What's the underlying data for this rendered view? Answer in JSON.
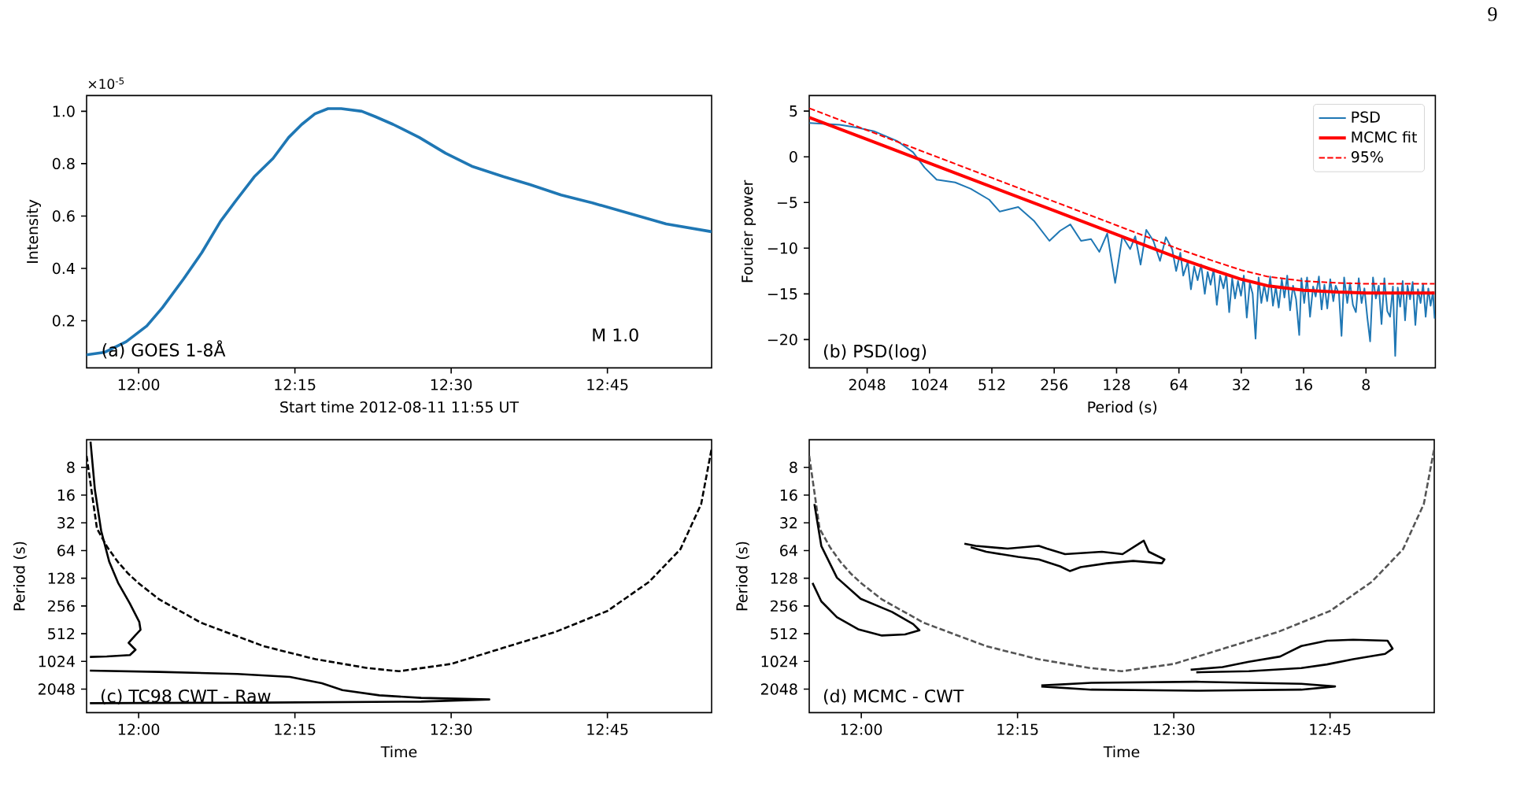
{
  "chart_data": [
    {
      "type": "line",
      "xlabel": "Start time 2012-08-11 11:55 UT",
      "ylabel": "Intensity",
      "annotations": [
        "(a) GOES 1-8Å",
        "M 1.0",
        "×10$^{-5}$"
      ],
      "x": [
        11.9167,
        11.946,
        11.98,
        12.013,
        12.038,
        12.072,
        12.101,
        12.131,
        12.156,
        12.185,
        12.215,
        12.24,
        12.261,
        12.282,
        12.303,
        12.324,
        12.357,
        12.378,
        12.407,
        12.449,
        12.491,
        12.533,
        12.584,
        12.626,
        12.676,
        12.726,
        12.785,
        12.844,
        12.9167
      ],
      "series": [
        {
          "color": "#1f77b4",
          "values": [
            0.07,
            0.08,
            0.12,
            0.18,
            0.25,
            0.36,
            0.46,
            0.58,
            0.66,
            0.75,
            0.82,
            0.9,
            0.95,
            0.99,
            1.01,
            1.01,
            1.0,
            0.98,
            0.95,
            0.9,
            0.84,
            0.79,
            0.75,
            0.72,
            0.68,
            0.65,
            0.61,
            0.57,
            0.54
          ]
        }
      ],
      "xlim": [
        11.9167,
        12.9167
      ],
      "ylim": [
        0.02,
        1.06
      ],
      "xticks": [
        {
          "value": 12,
          "label": "12:00"
        },
        {
          "value": 12.25,
          "label": "12:15"
        },
        {
          "value": 12.5,
          "label": "12:30"
        },
        {
          "value": 12.75,
          "label": "12:45"
        }
      ],
      "yticks": [
        0.2,
        0.4,
        0.6,
        0.8,
        {
          "value": 1,
          "label": "1.0"
        }
      ]
    },
    {
      "type": "line",
      "xlabel": "Period (s)",
      "ylabel": "Fourier power",
      "annotations": [
        "(b) PSD(log)"
      ],
      "log": "x",
      "legend": "top right",
      "xlim": [
        3900,
        3.7
      ],
      "ylim": [
        -23.1,
        6.7
      ],
      "xticks": [
        2048,
        1024,
        512,
        256,
        128,
        64,
        32,
        16,
        8
      ],
      "yticks": [
        {
          "value": -20,
          "label": "−20"
        },
        {
          "value": -15,
          "label": "−15"
        },
        {
          "value": -10,
          "label": "−10"
        },
        {
          "value": -5,
          "label": "−5"
        },
        0,
        5
      ],
      "series": [
        {
          "name": "PSD",
          "color": "#1f77b4",
          "x": [
            3890,
            2780,
            2300,
            1900,
            1460,
            1230,
            1080,
            946,
            770,
            647,
            527,
            469,
            382,
            321,
            270,
            240,
            214,
            190,
            170,
            155,
            142,
            130,
            120,
            110,
            104,
            98,
            92,
            85,
            79,
            74,
            69,
            66,
            63,
            61,
            58,
            56,
            54,
            52,
            50,
            48,
            46.5,
            45,
            43.5,
            42,
            40.5,
            39,
            37.8,
            36.6,
            35.4,
            34.3,
            33.2,
            32.1,
            31.1,
            30.1,
            29.1,
            28.2,
            27.3,
            26.4,
            25.6,
            24.8,
            24.0,
            23.2,
            22.5,
            21.8,
            21.1,
            20.4,
            19.8,
            19.2,
            18.6,
            18.0,
            17.4,
            16.8,
            16.4,
            15.9,
            15.4,
            14.9,
            14.4,
            14.0,
            13.5,
            13.1,
            12.7,
            12.3,
            11.9,
            11.5,
            11.2,
            10.8,
            10.5,
            10.2,
            9.85,
            9.55,
            9.25,
            8.95,
            8.67,
            8.4,
            8.14,
            7.88,
            7.64,
            7.4,
            7.17,
            6.94,
            6.73,
            6.52,
            6.31,
            6.12,
            5.93,
            5.78,
            5.62,
            5.47,
            5.32,
            5.18,
            5.04,
            4.9,
            4.76,
            4.62,
            4.49,
            4.36,
            4.24,
            4.12,
            4.0,
            3.9,
            3.8,
            3.73
          ],
          "values": [
            3.7,
            3.5,
            3.2,
            2.8,
            1.7,
            0.5,
            -1.2,
            -2.5,
            -2.8,
            -3.5,
            -4.7,
            -6.0,
            -5.5,
            -7.0,
            -9.2,
            -8.1,
            -7.4,
            -9.2,
            -9.0,
            -10.4,
            -8.4,
            -13.8,
            -8.7,
            -10.1,
            -8.7,
            -11.8,
            -8.0,
            -9.2,
            -11.4,
            -8.8,
            -10.1,
            -12.5,
            -10.5,
            -13.0,
            -11.5,
            -14.5,
            -12.0,
            -13.5,
            -11.8,
            -15.0,
            -12.6,
            -14.0,
            -12.3,
            -16.2,
            -13.0,
            -14.4,
            -12.8,
            -17.0,
            -13.3,
            -15.5,
            -13.6,
            -15.2,
            -13.0,
            -17.6,
            -13.8,
            -15.0,
            -19.9,
            -13.2,
            -16.0,
            -14.0,
            -15.8,
            -13.1,
            -16.3,
            -14.2,
            -16.5,
            -13.4,
            -15.4,
            -13.0,
            -16.8,
            -14.1,
            -15.6,
            -19.5,
            -13.3,
            -16.0,
            -13.2,
            -17.5,
            -14.2,
            -15.3,
            -13.1,
            -16.7,
            -14.0,
            -16.6,
            -13.4,
            -15.8,
            -14.1,
            -15.0,
            -19.6,
            -13.2,
            -16.0,
            -13.8,
            -16.2,
            -17.0,
            -13.3,
            -16.0,
            -14.4,
            -17.6,
            -20.2,
            -13.2,
            -15.5,
            -14.1,
            -18.3,
            -13.3,
            -16.9,
            -17.5,
            -14.2,
            -21.8,
            -14.3,
            -16.4,
            -13.6,
            -17.9,
            -14.1,
            -15.6,
            -13.7,
            -18.4,
            -14.5,
            -16.0,
            -13.9,
            -17.5,
            -14.4,
            -16.3,
            -14.8,
            -17.7
          ]
        },
        {
          "name": "MCMC fit",
          "color": "#ff0000",
          "x": [
            3890,
            2048,
            1024,
            512,
            256,
            128,
            64,
            45,
            32,
            24,
            16,
            11,
            8,
            3.73
          ],
          "values": [
            4.3,
            1.9,
            -0.7,
            -3.3,
            -5.9,
            -8.5,
            -11.1,
            -12.3,
            -13.4,
            -14.1,
            -14.6,
            -14.8,
            -14.9,
            -14.9
          ]
        },
        {
          "name": "95%",
          "color": "#ff0000",
          "line_style": "dashed",
          "x": [
            3890,
            2048,
            1024,
            512,
            256,
            128,
            64,
            45,
            32,
            24,
            16,
            11,
            8,
            3.73
          ],
          "values": [
            5.3,
            2.9,
            0.3,
            -2.3,
            -4.9,
            -7.5,
            -10.1,
            -11.3,
            -12.4,
            -13.1,
            -13.6,
            -13.8,
            -13.9,
            -13.9
          ]
        }
      ]
    },
    {
      "type": "line",
      "xlabel": "Time",
      "ylabel": "Period (s)",
      "annotations": [
        "(c) TC98 CWT - Raw"
      ],
      "log": "y",
      "xlim": [
        11.9167,
        12.9167
      ],
      "ylim": [
        3690,
        4
      ],
      "xticks": [
        {
          "value": 12,
          "label": "12:00"
        },
        {
          "value": 12.25,
          "label": "12:15"
        },
        {
          "value": 12.5,
          "label": "12:30"
        },
        {
          "value": 12.75,
          "label": "12:45"
        }
      ],
      "yticks": [
        8,
        16,
        32,
        64,
        128,
        256,
        512,
        1024,
        2048
      ],
      "series": [
        {
          "color": "#000000",
          "line_style": "dashed",
          "x": [
            11.9167,
            11.9333,
            11.95,
            11.9667,
            11.9833,
            12.0,
            12.0333,
            12.1,
            12.2,
            12.2833,
            12.3667,
            12.4167,
            12.5,
            12.5833,
            12.6667,
            12.75,
            12.8167,
            12.8667,
            12.9,
            12.9167
          ],
          "values": [
            6,
            37,
            59,
            85,
            114,
            145,
            218,
            390,
            700,
            970,
            1210,
            1310,
            1090,
            730,
            490,
            290,
            140,
            62,
            20,
            5
          ]
        },
        {
          "color": "#000000",
          "x": [
            11.923,
            11.93,
            11.94,
            11.953,
            11.967,
            11.986,
            12.001,
            12.003,
            11.995,
            11.984,
            11.995,
            11.986,
            11.949,
            11.922
          ],
          "values": [
            4.2,
            14,
            39,
            85,
            143,
            241,
            382,
            465,
            530,
            644,
            765,
            873,
            905,
            916
          ]
        },
        {
          "color": "#000000",
          "x": [
            11.922,
            12.033,
            12.158,
            12.242,
            12.293,
            12.326,
            12.385,
            12.452,
            12.561,
            12.452,
            12.2,
            11.922
          ],
          "values": [
            1290,
            1330,
            1400,
            1510,
            1770,
            2100,
            2390,
            2550,
            2650,
            2800,
            2870,
            2910
          ]
        }
      ]
    },
    {
      "type": "line",
      "xlabel": "Time",
      "ylabel": "Period (s)",
      "annotations": [
        "(d) MCMC - CWT"
      ],
      "log": "y",
      "xlim": [
        11.9167,
        12.9167
      ],
      "ylim": [
        3690,
        4
      ],
      "xticks": [
        {
          "value": 12,
          "label": "12:00"
        },
        {
          "value": 12.25,
          "label": "12:15"
        },
        {
          "value": 12.5,
          "label": "12:30"
        },
        {
          "value": 12.75,
          "label": "12:45"
        }
      ],
      "yticks": [
        8,
        16,
        32,
        64,
        128,
        256,
        512,
        1024,
        2048
      ],
      "series": [
        {
          "color": "#555555",
          "line_style": "dashed",
          "x": [
            11.9167,
            11.9333,
            11.95,
            11.9667,
            11.9833,
            12.0,
            12.0333,
            12.1,
            12.2,
            12.2833,
            12.3667,
            12.4167,
            12.5,
            12.5833,
            12.6667,
            12.75,
            12.8167,
            12.8667,
            12.9,
            12.9167
          ],
          "values": [
            6,
            37,
            59,
            85,
            114,
            145,
            218,
            390,
            700,
            970,
            1210,
            1310,
            1090,
            730,
            490,
            290,
            140,
            62,
            20,
            5
          ]
        },
        {
          "color": "#000000",
          "x": [
            12.165,
            12.183,
            12.234,
            12.284,
            12.297,
            12.326,
            12.385,
            12.418,
            12.444,
            12.452,
            12.46,
            12.485,
            12.481,
            12.435,
            12.393,
            12.351,
            12.334,
            12.318,
            12.284,
            12.251,
            12.2,
            12.175
          ],
          "values": [
            54,
            57,
            61,
            57,
            61,
            70,
            66,
            70,
            54,
            50,
            66,
            80,
            88,
            83,
            88,
            97,
            107,
            95,
            80,
            75,
            66,
            59
          ]
        },
        {
          "color": "#000000",
          "x": [
            11.925,
            11.936,
            11.961,
            11.999,
            12.049,
            12.083,
            12.093,
            12.07,
            12.033,
            11.995,
            11.961,
            11.936,
            11.922
          ],
          "values": [
            20,
            57,
            126,
            214,
            297,
            402,
            470,
            522,
            536,
            458,
            339,
            228,
            144
          ]
        },
        {
          "color": "#000000",
          "x": [
            12.527,
            12.578,
            12.62,
            12.67,
            12.687,
            12.704,
            12.745,
            12.787,
            12.842,
            12.85,
            12.838,
            12.787,
            12.745,
            12.704,
            12.62,
            12.536
          ],
          "values": [
            1260,
            1180,
            1035,
            907,
            795,
            697,
            611,
            596,
            611,
            744,
            849,
            968,
            1104,
            1211,
            1310,
            1344
          ]
        },
        {
          "color": "#000000",
          "x": [
            12.288,
            12.368,
            12.536,
            12.704,
            12.758,
            12.704,
            12.536,
            12.368,
            12.288
          ],
          "values": [
            1868,
            1750,
            1704,
            1795,
            1917,
            2075,
            2130,
            2075,
            1917
          ]
        }
      ]
    },
    {
      "type": "other",
      "annotations": [
        "9"
      ]
    }
  ]
}
